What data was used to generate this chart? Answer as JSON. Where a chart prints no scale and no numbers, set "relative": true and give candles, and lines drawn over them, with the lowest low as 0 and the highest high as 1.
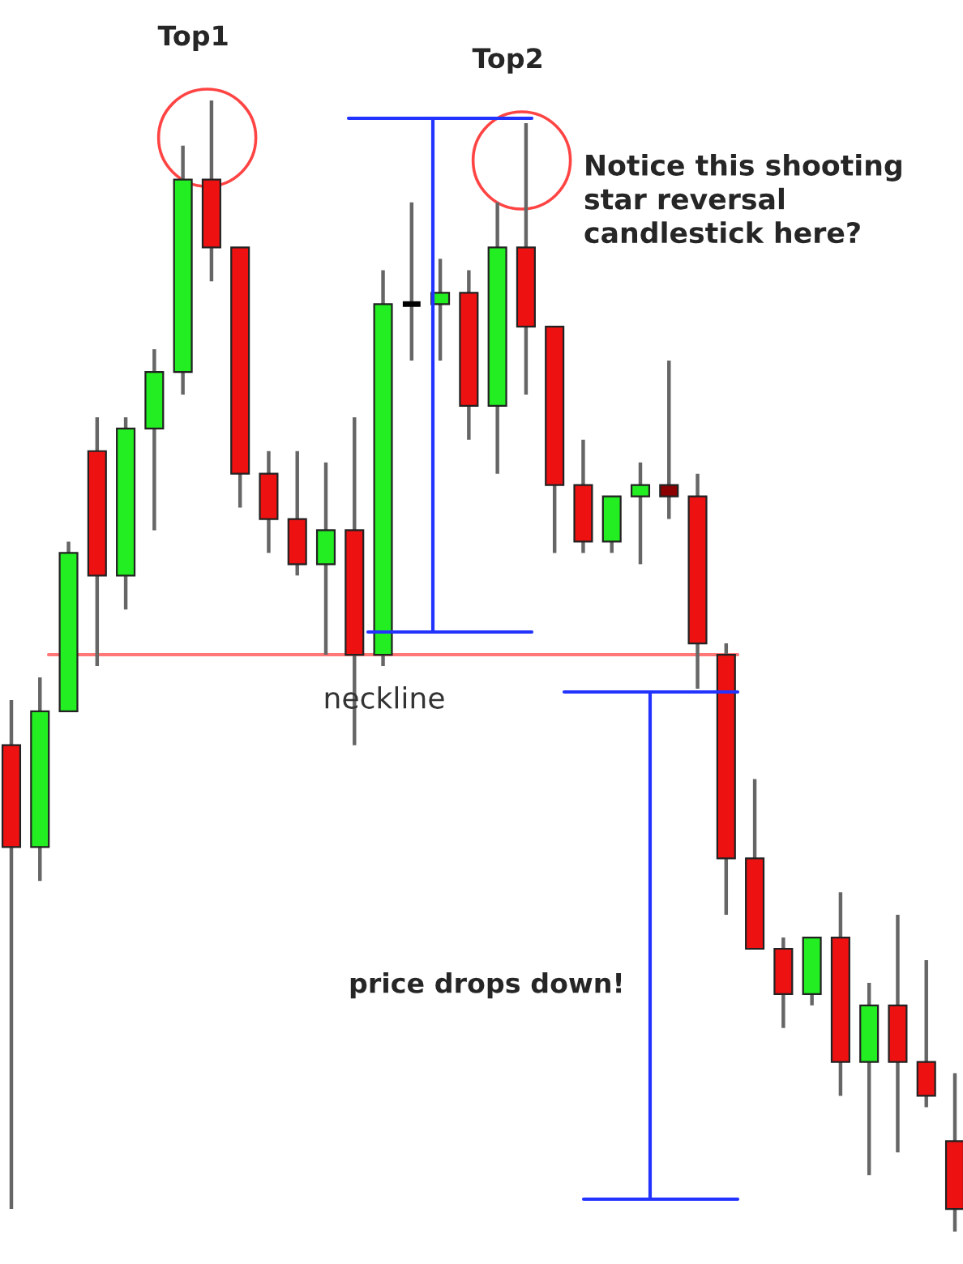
{
  "chart_data": {
    "type": "candlestick",
    "relative": true,
    "categories": [
      null,
      null,
      null,
      null,
      null,
      null,
      null,
      null,
      null,
      null,
      null,
      null,
      null,
      null,
      null,
      null,
      null,
      null,
      null,
      null,
      null,
      null,
      null,
      null,
      null,
      null,
      null,
      null,
      null,
      null,
      null,
      null,
      null,
      null
    ],
    "ohlc": [
      [
        0.43,
        0.47,
        0.02,
        0.34
      ],
      [
        0.34,
        0.49,
        0.31,
        0.46
      ],
      [
        0.46,
        0.61,
        0.46,
        0.6
      ],
      [
        0.69,
        0.72,
        0.5,
        0.58
      ],
      [
        0.58,
        0.72,
        0.55,
        0.71
      ],
      [
        0.71,
        0.78,
        0.62,
        0.76
      ],
      [
        0.76,
        0.96,
        0.74,
        0.93
      ],
      [
        0.93,
        1.0,
        0.84,
        0.87
      ],
      [
        0.87,
        0.87,
        0.64,
        0.67
      ],
      [
        0.67,
        0.69,
        0.6,
        0.63
      ],
      [
        0.63,
        0.69,
        0.58,
        0.59
      ],
      [
        0.59,
        0.68,
        0.51,
        0.62
      ],
      [
        0.62,
        0.72,
        0.43,
        0.51
      ],
      [
        0.51,
        0.85,
        0.5,
        0.82
      ],
      [
        0.82,
        0.91,
        0.77,
        0.82
      ],
      [
        0.82,
        0.86,
        0.77,
        0.83
      ],
      [
        0.83,
        0.85,
        0.7,
        0.73
      ],
      [
        0.73,
        0.91,
        0.67,
        0.87
      ],
      [
        0.87,
        0.98,
        0.74,
        0.8
      ],
      [
        0.8,
        0.8,
        0.6,
        0.66
      ],
      [
        0.66,
        0.7,
        0.6,
        0.61
      ],
      [
        0.61,
        0.65,
        0.6,
        0.65
      ],
      [
        0.65,
        0.68,
        0.59,
        0.66
      ],
      [
        0.66,
        0.77,
        0.63,
        0.65
      ],
      [
        0.65,
        0.67,
        0.48,
        0.52
      ],
      [
        0.51,
        0.52,
        0.28,
        0.33
      ],
      [
        0.33,
        0.4,
        0.25,
        0.25
      ],
      [
        0.25,
        0.26,
        0.18,
        0.21
      ],
      [
        0.21,
        0.26,
        0.2,
        0.26
      ],
      [
        0.26,
        0.3,
        0.12,
        0.15
      ],
      [
        0.15,
        0.22,
        0.05,
        0.2
      ],
      [
        0.2,
        0.28,
        0.07,
        0.15
      ],
      [
        0.15,
        0.24,
        0.11,
        0.12
      ],
      [
        0.08,
        0.14,
        0.0,
        0.02
      ]
    ],
    "colors": [
      "#ee1111",
      "#22ee22",
      "#22ee22",
      "#ee1111",
      "#22ee22",
      "#22ee22",
      "#22ee22",
      "#ee1111",
      "#ee1111",
      "#ee1111",
      "#ee1111",
      "#22ee22",
      "#ee1111",
      "#22ee22",
      "#000000",
      "#22ee22",
      "#ee1111",
      "#22ee22",
      "#ee1111",
      "#ee1111",
      "#ee1111",
      "#22ee22",
      "#22ee22",
      "#8b0000",
      "#ee1111",
      "#ee1111",
      "#ee1111",
      "#ee1111",
      "#22ee22",
      "#ee1111",
      "#22ee22",
      "#ee1111",
      "#ee1111",
      "#ee1111"
    ],
    "ref_lines": [
      {
        "axis": "y",
        "value": 0.51,
        "label": "neckline",
        "color": "#ff7777"
      }
    ],
    "annotations": [
      "Top1",
      "Top2",
      "Notice this shooting star reversal candlestick here?",
      "price drops down!"
    ]
  }
}
